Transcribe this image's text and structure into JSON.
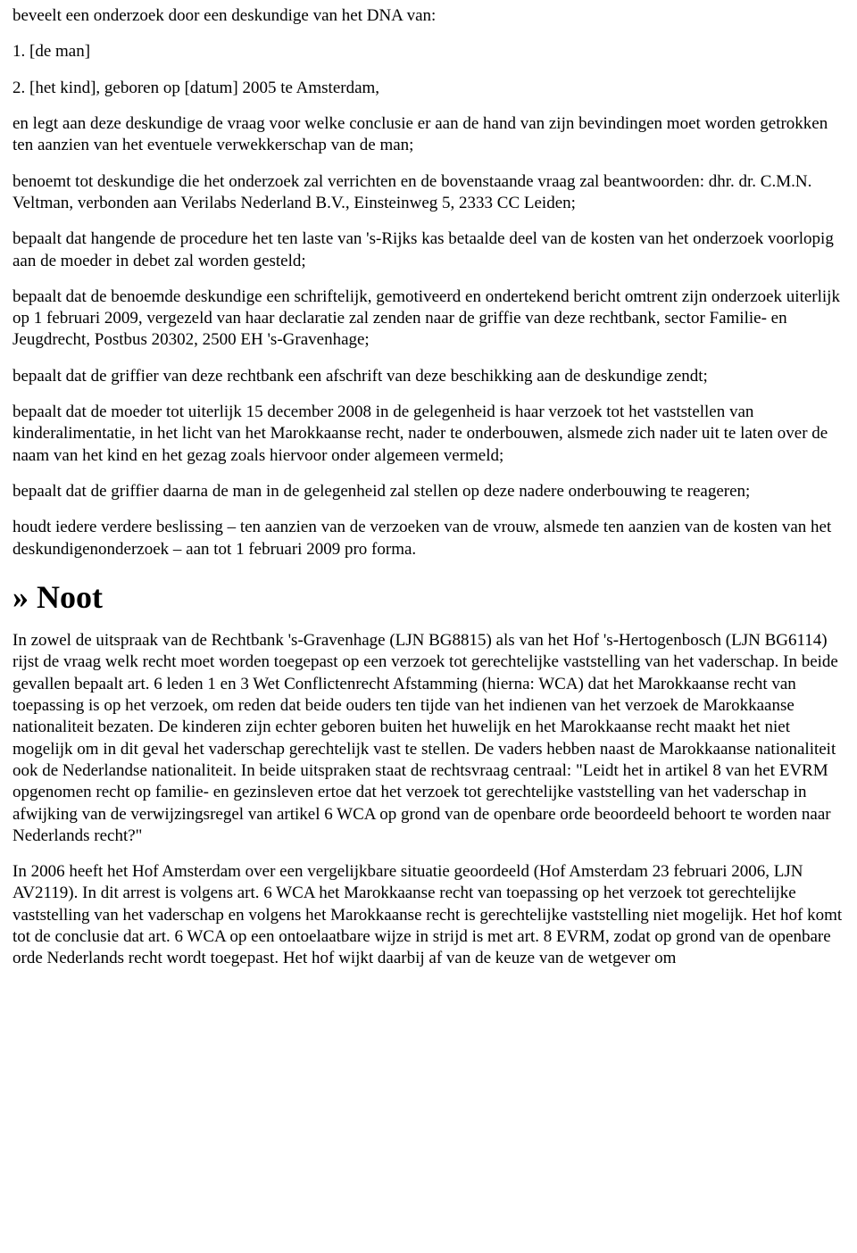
{
  "intro": "beveelt een onderzoek door een deskundige van het DNA van:",
  "list1": "1. [de man]",
  "list2": "2. [het kind], geboren op [datum] 2005 te Amsterdam,",
  "p1": "en legt aan deze deskundige de vraag voor welke conclusie er aan de hand van zijn bevindingen moet worden getrokken ten aanzien van het eventuele verwekkerschap van de man;",
  "p2": "benoemt tot deskundige die het onderzoek zal verrichten en de bovenstaande vraag zal beantwoorden: dhr. dr. C.M.N. Veltman, verbonden aan Verilabs Nederland B.V., Einsteinweg 5, 2333 CC Leiden;",
  "p3": "bepaalt dat hangende de procedure het ten laste van 's-Rijks kas betaalde deel van de kosten van het onderzoek voorlopig aan de moeder in debet zal worden gesteld;",
  "p4": "bepaalt dat de benoemde deskundige een schriftelijk, gemotiveerd en ondertekend bericht omtrent zijn onderzoek uiterlijk op 1 februari 2009, vergezeld van haar declaratie zal zenden naar de griffie van deze rechtbank, sector Familie- en Jeugdrecht, Postbus 20302, 2500 EH 's-Gravenhage;",
  "p5": "bepaalt dat de griffier van deze rechtbank een afschrift van deze beschikking aan de deskundige zendt;",
  "p6": "bepaalt dat de moeder tot uiterlijk 15 december 2008 in de gelegenheid is haar verzoek tot het vaststellen van kinderalimentatie, in het licht van het Marokkaanse recht, nader te onderbouwen, alsmede zich nader uit te laten over de naam van het kind en het gezag zoals hiervoor onder algemeen vermeld;",
  "p7": "bepaalt dat de griffier daarna de man in de gelegenheid zal stellen op deze nadere onderbouwing te reageren;",
  "p8": "houdt iedere verdere beslissing – ten aanzien van de verzoeken van de vrouw, alsmede ten aanzien van de kosten van het deskundigenonderzoek – aan tot 1 februari 2009 pro forma.",
  "noot_heading": "» Noot",
  "n1": "In zowel de uitspraak van de Rechtbank 's-Gravenhage (LJN BG8815) als van het Hof 's-Hertogenbosch (LJN BG6114) rijst de vraag welk recht moet worden toegepast op een verzoek tot gerechtelijke vaststelling van het vaderschap. In beide gevallen bepaalt art. 6 leden 1 en 3 Wet Conflictenrecht Afstamming (hierna: WCA) dat het Marokkaanse recht van toepassing is op het verzoek, om reden dat beide ouders ten tijde van het indienen van het verzoek de Marokkaanse nationaliteit bezaten. De kinderen zijn echter geboren buiten het huwelijk en het Marokkaanse recht maakt het niet mogelijk om in dit geval het vaderschap gerechtelijk vast te stellen. De vaders hebben naast de Marokkaanse nationaliteit ook de Nederlandse nationaliteit. In beide uitspraken staat de rechtsvraag centraal: \"Leidt het in artikel 8 van het EVRM opgenomen recht op familie- en gezinsleven ertoe dat het verzoek tot gerechtelijke vaststelling van het vaderschap in afwijking van de verwijzingsregel van artikel 6 WCA op grond van de openbare orde beoordeeld behoort te worden naar Nederlands recht?\"",
  "n2": "In 2006 heeft het Hof Amsterdam over een vergelijkbare situatie geoordeeld (Hof Amsterdam 23 februari 2006, LJN AV2119). In dit arrest is volgens art. 6 WCA het Marokkaanse recht van toepassing op het verzoek tot gerechtelijke vaststelling van het vaderschap en volgens het Marokkaanse recht is gerechtelijke vaststelling niet mogelijk. Het hof komt tot de conclusie dat art. 6 WCA op een ontoelaatbare wijze in strijd is met art. 8 EVRM, zodat op grond van de openbare orde Nederlands recht wordt toegepast. Het hof wijkt daarbij af van de keuze van de wetgever om"
}
